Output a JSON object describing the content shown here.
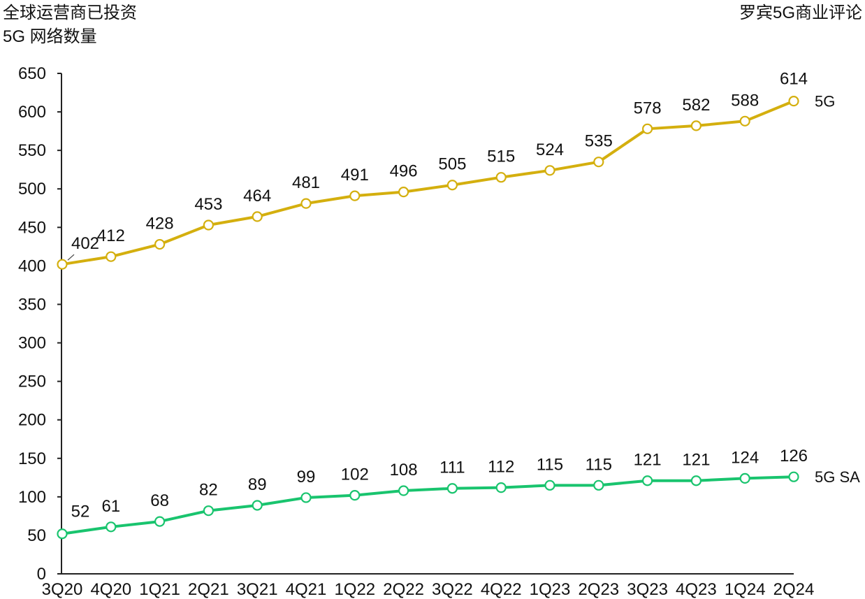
{
  "chart_data": {
    "type": "line",
    "title": "全球运营商已投资\n5G 网络数量",
    "source": "罗宾5G商业评论",
    "categories": [
      "3Q20",
      "4Q20",
      "1Q21",
      "2Q21",
      "3Q21",
      "4Q21",
      "1Q22",
      "2Q22",
      "3Q22",
      "4Q22",
      "1Q23",
      "2Q23",
      "3Q23",
      "4Q23",
      "1Q24",
      "2Q24"
    ],
    "ylim": [
      0,
      650
    ],
    "yticks": [
      0,
      50,
      100,
      150,
      200,
      250,
      300,
      350,
      400,
      450,
      500,
      550,
      600,
      650
    ],
    "grid": false,
    "legend": "inline-right",
    "series": [
      {
        "name": "5G",
        "color": "#D4AF0E",
        "values": [
          402,
          412,
          428,
          453,
          464,
          481,
          491,
          496,
          505,
          515,
          524,
          535,
          578,
          582,
          588,
          614
        ]
      },
      {
        "name": "5G SA",
        "color": "#19C46E",
        "values": [
          52,
          61,
          68,
          82,
          89,
          99,
          102,
          108,
          111,
          112,
          115,
          115,
          121,
          121,
          124,
          126
        ]
      }
    ]
  }
}
